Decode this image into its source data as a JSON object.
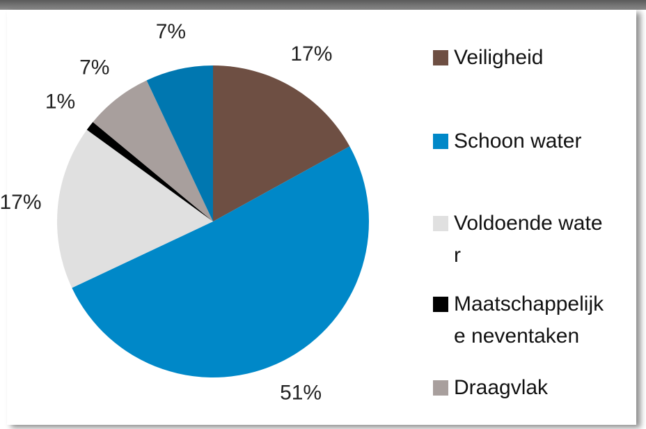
{
  "chart_data": {
    "type": "pie",
    "categories": [
      "Veiligheid",
      "Schoon water",
      "Voldoende water",
      "Maatschappelijke neventaken",
      "Draagvlak",
      null
    ],
    "values": [
      17,
      51,
      17,
      1,
      7,
      7
    ],
    "value_labels": [
      "17%",
      "51%",
      "17%",
      "1%",
      "7%",
      "7%"
    ],
    "colors": [
      "#6e4f43",
      "#0088c8",
      "#e0e0e0",
      "#000000",
      "#a89f9d",
      "#0077b0"
    ],
    "legend": "right"
  }
}
